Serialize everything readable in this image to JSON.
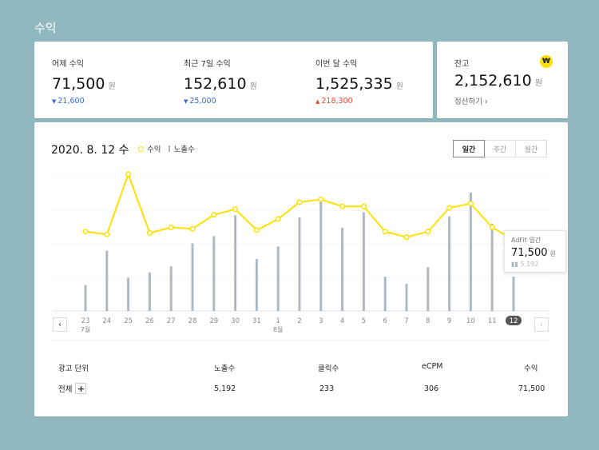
{
  "page_title": "수익",
  "stats": [
    {
      "label": "어제 수익",
      "value": "71,500",
      "unit": "원",
      "delta": "21,600",
      "direction": "down"
    },
    {
      "label": "최근 7일 수익",
      "value": "152,610",
      "unit": "원",
      "delta": "25,000",
      "direction": "down"
    },
    {
      "label": "이번 달 수익",
      "value": "1,525,335",
      "unit": "원",
      "delta": "218,300",
      "direction": "up"
    }
  ],
  "balance": {
    "label": "잔고",
    "badge": "₩",
    "value": "2,152,610",
    "unit": "원",
    "settle_link": "정산하기 ›"
  },
  "chart_header": {
    "date": "2020. 8. 12 수",
    "legend_revenue": "수익",
    "legend_impressions": "노출수"
  },
  "period_tabs": [
    {
      "label": "일간",
      "active": true
    },
    {
      "label": "주간",
      "active": false
    },
    {
      "label": "월간",
      "active": false
    }
  ],
  "chart_data": {
    "type": "line",
    "categories": [
      "23",
      "24",
      "25",
      "26",
      "27",
      "28",
      "29",
      "30",
      "31",
      "1",
      "2",
      "3",
      "4",
      "5",
      "6",
      "7",
      "8",
      "9",
      "10",
      "11",
      "12"
    ],
    "month_labels": [
      "7월",
      "8월"
    ],
    "series": [
      {
        "name": "수익",
        "type": "line",
        "color": "#ffe100",
        "values": [
          51,
          49,
          92,
          50,
          54,
          53,
          63,
          67,
          52,
          60,
          72,
          74,
          69,
          69,
          51,
          47,
          51,
          68,
          71,
          54,
          45
        ]
      },
      {
        "name": "노출수",
        "type": "bar",
        "color": "#aeb8c2",
        "values": [
          25,
          58,
          32,
          37,
          43,
          65,
          72,
          92,
          50,
          62,
          90,
          108,
          80,
          95,
          33,
          26,
          42,
          91,
          114,
          84,
          33
        ]
      }
    ],
    "grid": true,
    "selected_index": 20
  },
  "tooltip": {
    "label": "AdFit 일간",
    "value": "71,500",
    "unit": "원",
    "sub": "5,192"
  },
  "table": {
    "headers": [
      "광고 단위",
      "노출수",
      "클릭수",
      "eCPM",
      "수익"
    ],
    "row": {
      "name": "전체",
      "add": "+",
      "impressions": "5,192",
      "clicks": "233",
      "ecpm": "306",
      "revenue": "71,500"
    }
  }
}
